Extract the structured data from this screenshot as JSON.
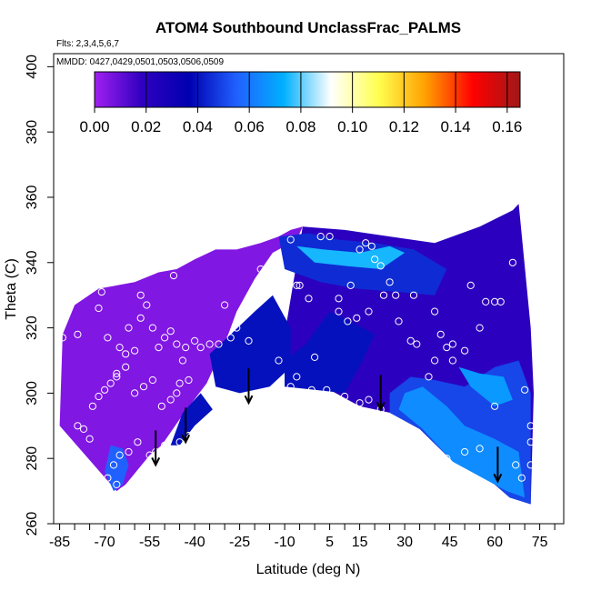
{
  "chart_data": {
    "type": "heatmap",
    "title": "ATOM4 Southbound UnclassFrac_PALMS",
    "subtitle_flights": "Flts: 2,3,4,5,6,7",
    "subtitle_dates": "MMDD: 0427,0429,0501,0503,0506,0509",
    "xlabel": "Latitude (deg N)",
    "ylabel": "Theta (C)",
    "xlim": [
      -87,
      83
    ],
    "ylim": [
      260,
      404
    ],
    "x_ticks_major": [
      "-85",
      "-70",
      "-55",
      "-40",
      "-25",
      "-10",
      "5",
      "15",
      "30",
      "45",
      "60",
      "75"
    ],
    "x_tick_values": [
      -85,
      -70,
      -55,
      -40,
      -25,
      -10,
      5,
      15,
      30,
      45,
      60,
      75
    ],
    "y_ticks": [
      "260",
      "280",
      "300",
      "320",
      "340",
      "360",
      "380",
      "400"
    ],
    "y_tick_values": [
      260,
      280,
      300,
      320,
      340,
      360,
      380,
      400
    ],
    "colorbar": {
      "range": [
        0,
        0.165
      ],
      "ticks": [
        "0.00",
        "0.02",
        "0.04",
        "0.06",
        "0.08",
        "0.10",
        "0.12",
        "0.14",
        "0.16"
      ],
      "tick_values": [
        0,
        0.02,
        0.04,
        0.06,
        0.08,
        0.1,
        0.12,
        0.14,
        0.16
      ],
      "colors": [
        "#a020f0",
        "#3000c0",
        "#0000b0",
        "#2060ff",
        "#00b0ff",
        "#ffffff",
        "#ffff50",
        "#ffa000",
        "#ff0000",
        "#a01818"
      ]
    },
    "field_regions": [
      {
        "name": "south-background",
        "value": 0.005,
        "polygon": [
          [
            -85,
            290
          ],
          [
            -84,
            318
          ],
          [
            -80,
            327
          ],
          [
            -72,
            332
          ],
          [
            -66,
            333
          ],
          [
            -60,
            334
          ],
          [
            -52,
            337
          ],
          [
            -46,
            338
          ],
          [
            -40,
            341
          ],
          [
            -33,
            344
          ],
          [
            -26,
            344
          ],
          [
            -18,
            346
          ],
          [
            -12,
            348
          ],
          [
            -8,
            350
          ],
          [
            -4,
            351
          ],
          [
            -6,
            347
          ],
          [
            -14,
            343
          ],
          [
            -20,
            335
          ],
          [
            -26,
            325
          ],
          [
            -30,
            315
          ],
          [
            -36,
            303
          ],
          [
            -41,
            297
          ],
          [
            -45,
            292
          ],
          [
            -51,
            284
          ],
          [
            -55,
            281
          ],
          [
            -63,
            272
          ],
          [
            -66,
            270
          ],
          [
            -85,
            290
          ]
        ]
      },
      {
        "name": "north-background",
        "value": 0.02,
        "polygon": [
          [
            -4,
            351
          ],
          [
            10,
            350
          ],
          [
            25,
            348
          ],
          [
            40,
            346
          ],
          [
            55,
            351
          ],
          [
            66,
            356
          ],
          [
            68,
            358
          ],
          [
            72,
            320
          ],
          [
            73,
            300
          ],
          [
            72,
            266
          ],
          [
            65,
            268
          ],
          [
            55,
            276
          ],
          [
            45,
            280
          ],
          [
            35,
            289
          ],
          [
            25,
            294
          ],
          [
            15,
            296
          ],
          [
            5,
            301
          ],
          [
            -10,
            302
          ],
          [
            -10,
            318
          ],
          [
            -4,
            351
          ]
        ]
      },
      {
        "name": "upper-mid-band",
        "value": 0.045,
        "polygon": [
          [
            -12,
            348
          ],
          [
            -2,
            349
          ],
          [
            8,
            347
          ],
          [
            20,
            346
          ],
          [
            33,
            344
          ],
          [
            44,
            338
          ],
          [
            40,
            330
          ],
          [
            28,
            331
          ],
          [
            14,
            332
          ],
          [
            2,
            334
          ],
          [
            -10,
            338
          ],
          [
            -12,
            348
          ]
        ]
      },
      {
        "name": "mid-south-band",
        "value": 0.04,
        "polygon": [
          [
            -35,
            312
          ],
          [
            -28,
            318
          ],
          [
            -20,
            325
          ],
          [
            -14,
            330
          ],
          [
            -8,
            320
          ],
          [
            -8,
            308
          ],
          [
            -15,
            302
          ],
          [
            -25,
            300
          ],
          [
            -33,
            302
          ],
          [
            -35,
            312
          ]
        ]
      },
      {
        "name": "lower-mid-band",
        "value": 0.04,
        "polygon": [
          [
            -10,
            302
          ],
          [
            0,
            301
          ],
          [
            10,
            300
          ],
          [
            16,
            310
          ],
          [
            20,
            318
          ],
          [
            12,
            322
          ],
          [
            5,
            325
          ],
          [
            -3,
            315
          ],
          [
            -10,
            310
          ],
          [
            -10,
            302
          ]
        ]
      },
      {
        "name": "north-lower-band",
        "value": 0.05,
        "polygon": [
          [
            25,
            294
          ],
          [
            35,
            289
          ],
          [
            45,
            280
          ],
          [
            55,
            276
          ],
          [
            65,
            268
          ],
          [
            72,
            266
          ],
          [
            72,
            300
          ],
          [
            68,
            310
          ],
          [
            60,
            308
          ],
          [
            50,
            302
          ],
          [
            40,
            304
          ],
          [
            32,
            305
          ],
          [
            25,
            300
          ],
          [
            25,
            294
          ]
        ]
      },
      {
        "name": "north-core",
        "value": 0.065,
        "polygon": [
          [
            28,
            295
          ],
          [
            36,
            289
          ],
          [
            46,
            279
          ],
          [
            56,
            274
          ],
          [
            64,
            270
          ],
          [
            70,
            268
          ],
          [
            68,
            282
          ],
          [
            60,
            286
          ],
          [
            50,
            290
          ],
          [
            44,
            296
          ],
          [
            36,
            302
          ],
          [
            30,
            300
          ],
          [
            28,
            295
          ]
        ]
      },
      {
        "name": "upper-core",
        "value": 0.075,
        "polygon": [
          [
            -6,
            345
          ],
          [
            3,
            344
          ],
          [
            15,
            343
          ],
          [
            25,
            345
          ],
          [
            30,
            343
          ],
          [
            22,
            338
          ],
          [
            10,
            339
          ],
          [
            0,
            340
          ],
          [
            -6,
            345
          ]
        ]
      },
      {
        "name": "pale-streak",
        "value": 0.068,
        "polygon": [
          [
            48,
            308
          ],
          [
            55,
            306
          ],
          [
            63,
            305
          ],
          [
            66,
            298
          ],
          [
            60,
            296
          ],
          [
            52,
            302
          ],
          [
            48,
            308
          ]
        ]
      },
      {
        "name": "south-hotspot",
        "value": 0.12,
        "polygon": [
          [
            -68,
            277
          ],
          [
            -67,
            280
          ],
          [
            -65,
            279
          ],
          [
            -64,
            275
          ],
          [
            -66,
            273
          ],
          [
            -68,
            277
          ]
        ]
      },
      {
        "name": "south-hotspot-rim",
        "value": 0.055,
        "polygon": [
          [
            -70,
            276
          ],
          [
            -68,
            284
          ],
          [
            -64,
            283
          ],
          [
            -62,
            278
          ],
          [
            -64,
            272
          ],
          [
            -67,
            270
          ],
          [
            -70,
            276
          ]
        ]
      },
      {
        "name": "south-mid-streak",
        "value": 0.04,
        "polygon": [
          [
            -48,
            284
          ],
          [
            -44,
            294
          ],
          [
            -38,
            300
          ],
          [
            -34,
            295
          ],
          [
            -40,
            290
          ],
          [
            -45,
            284
          ],
          [
            -48,
            284
          ]
        ]
      }
    ],
    "points": [
      [
        -84,
        317
      ],
      [
        -79,
        318
      ],
      [
        -71,
        331
      ],
      [
        -72,
        326
      ],
      [
        -69,
        317
      ],
      [
        -65,
        314
      ],
      [
        -66,
        306
      ],
      [
        -63,
        312
      ],
      [
        -62,
        320
      ],
      [
        -60,
        313
      ],
      [
        -58,
        323
      ],
      [
        -56,
        327
      ],
      [
        -58,
        330
      ],
      [
        -54,
        320
      ],
      [
        -52,
        314
      ],
      [
        -50,
        317
      ],
      [
        -48,
        319
      ],
      [
        -47,
        336
      ],
      [
        -46,
        315
      ],
      [
        -44,
        310
      ],
      [
        -43,
        314
      ],
      [
        -42,
        304
      ],
      [
        -40,
        316
      ],
      [
        -38,
        314
      ],
      [
        -35,
        315
      ],
      [
        -32,
        315
      ],
      [
        -30,
        327
      ],
      [
        -28,
        317
      ],
      [
        -26,
        320
      ],
      [
        -22,
        316
      ],
      [
        -20,
        328
      ],
      [
        -16,
        331
      ],
      [
        -18,
        338
      ],
      [
        -14,
        350
      ],
      [
        -11,
        350
      ],
      [
        -8,
        347
      ],
      [
        -6,
        333
      ],
      [
        -5,
        333
      ],
      [
        -2,
        329
      ],
      [
        2,
        348
      ],
      [
        5,
        348
      ],
      [
        8,
        329
      ],
      [
        12,
        333
      ],
      [
        15,
        344
      ],
      [
        17,
        346
      ],
      [
        19,
        345
      ],
      [
        20,
        341
      ],
      [
        22,
        339
      ],
      [
        25,
        334
      ],
      [
        28,
        322
      ],
      [
        32,
        316
      ],
      [
        34,
        315
      ],
      [
        38,
        305
      ],
      [
        40,
        310
      ],
      [
        44,
        314
      ],
      [
        46,
        315
      ],
      [
        50,
        313
      ],
      [
        52,
        333
      ],
      [
        55,
        320
      ],
      [
        57,
        328
      ],
      [
        60,
        328
      ],
      [
        62,
        328
      ],
      [
        65,
        357
      ],
      [
        66,
        340
      ],
      [
        70,
        301
      ],
      [
        72,
        290
      ],
      [
        72,
        285
      ],
      [
        72,
        278
      ],
      [
        69,
        274
      ],
      [
        67,
        278
      ],
      [
        60,
        296
      ],
      [
        55,
        283
      ],
      [
        50,
        282
      ],
      [
        44,
        280
      ],
      [
        38,
        282
      ],
      [
        30,
        290
      ],
      [
        28,
        291
      ],
      [
        22,
        295
      ],
      [
        18,
        298
      ],
      [
        15,
        297
      ],
      [
        10,
        299
      ],
      [
        4,
        301
      ],
      [
        -1,
        301
      ],
      [
        -8,
        302
      ],
      [
        -13,
        301
      ],
      [
        -20,
        298
      ],
      [
        -25,
        296
      ],
      [
        -28,
        294
      ],
      [
        -31,
        292
      ],
      [
        -37,
        290
      ],
      [
        -42,
        287
      ],
      [
        -45,
        285
      ],
      [
        -50,
        284
      ],
      [
        -53,
        282
      ],
      [
        -55,
        281
      ],
      [
        -59,
        285
      ],
      [
        -62,
        282
      ],
      [
        -65,
        281
      ],
      [
        -67,
        278
      ],
      [
        -69,
        274
      ],
      [
        -66,
        272
      ],
      [
        -64,
        270
      ],
      [
        -75,
        286
      ],
      [
        -77,
        289
      ],
      [
        -79,
        290
      ],
      [
        -74,
        296
      ],
      [
        -72,
        299
      ],
      [
        -70,
        301
      ],
      [
        -68,
        303
      ],
      [
        -66,
        305
      ],
      [
        -63,
        308
      ],
      [
        -60,
        300
      ],
      [
        -57,
        302
      ],
      [
        -54,
        304
      ],
      [
        -51,
        296
      ],
      [
        -48,
        298
      ],
      [
        -46,
        300
      ],
      [
        -45,
        303
      ],
      [
        -12,
        310
      ],
      [
        -6,
        305
      ],
      [
        0,
        311
      ],
      [
        8,
        325
      ],
      [
        11,
        322
      ],
      [
        14,
        323
      ],
      [
        18,
        325
      ],
      [
        23,
        330
      ],
      [
        27,
        330
      ],
      [
        33,
        330
      ],
      [
        40,
        325
      ],
      [
        42,
        318
      ],
      [
        46,
        310
      ]
    ],
    "arrows": [
      {
        "x": -53,
        "y_top": 283,
        "y_bottom": 278
      },
      {
        "x": -43,
        "y_top": 290,
        "y_bottom": 285
      },
      {
        "x": -22,
        "y_top": 302,
        "y_bottom": 297
      },
      {
        "x": 22,
        "y_top": 300,
        "y_bottom": 295
      },
      {
        "x": 61,
        "y_top": 278,
        "y_bottom": 273
      }
    ]
  }
}
